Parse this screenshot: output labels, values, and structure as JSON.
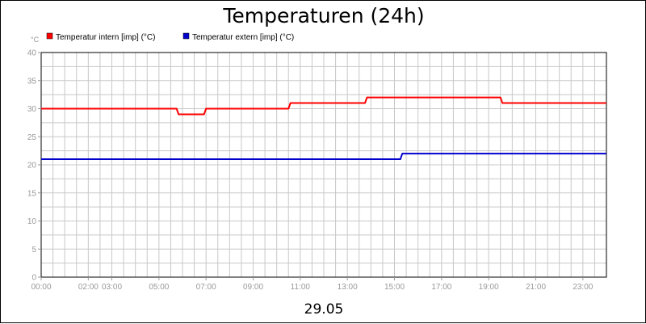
{
  "chart_data": {
    "type": "line",
    "title": "Temperaturen (24h)",
    "ylabel": "°C",
    "xlabel": "29.05",
    "ylim": [
      0,
      40
    ],
    "yticks": [
      0,
      5,
      10,
      15,
      20,
      25,
      30,
      35,
      40
    ],
    "xlim": [
      "00:00",
      "24:00"
    ],
    "xticks": [
      {
        "x": "00:00",
        "label": "00:00"
      },
      {
        "x": "02:00",
        "label": "02:00"
      },
      {
        "x": "03:00",
        "label": "03:00"
      },
      {
        "x": "05:00",
        "label": "05:00"
      },
      {
        "x": "07:00",
        "label": "07:00"
      },
      {
        "x": "09:00",
        "label": "09:00"
      },
      {
        "x": "11:00",
        "label": "11:00"
      },
      {
        "x": "13:00",
        "label": "13:00"
      },
      {
        "x": "15:00",
        "label": "15:00"
      },
      {
        "x": "17:00",
        "label": "17:00"
      },
      {
        "x": "19:00",
        "label": "19:00"
      },
      {
        "x": "21:00",
        "label": "21:00"
      },
      {
        "x": "23:00",
        "label": "23:00"
      }
    ],
    "grid": true,
    "legend_position": "top-left",
    "series": [
      {
        "name": "Temperatur intern [imp] (°C)",
        "color": "#ff0000",
        "points": [
          [
            "00:00",
            30
          ],
          [
            "05:45",
            30
          ],
          [
            "05:50",
            29
          ],
          [
            "06:55",
            29
          ],
          [
            "07:00",
            30
          ],
          [
            "10:30",
            30
          ],
          [
            "10:35",
            31
          ],
          [
            "13:45",
            31
          ],
          [
            "13:50",
            32
          ],
          [
            "19:30",
            32
          ],
          [
            "19:35",
            31
          ],
          [
            "24:00",
            31
          ]
        ]
      },
      {
        "name": "Temperatur extern [imp] (°C)",
        "color": "#0000cc",
        "points": [
          [
            "00:00",
            21
          ],
          [
            "15:15",
            21
          ],
          [
            "15:20",
            22
          ],
          [
            "24:00",
            22
          ]
        ]
      }
    ]
  }
}
